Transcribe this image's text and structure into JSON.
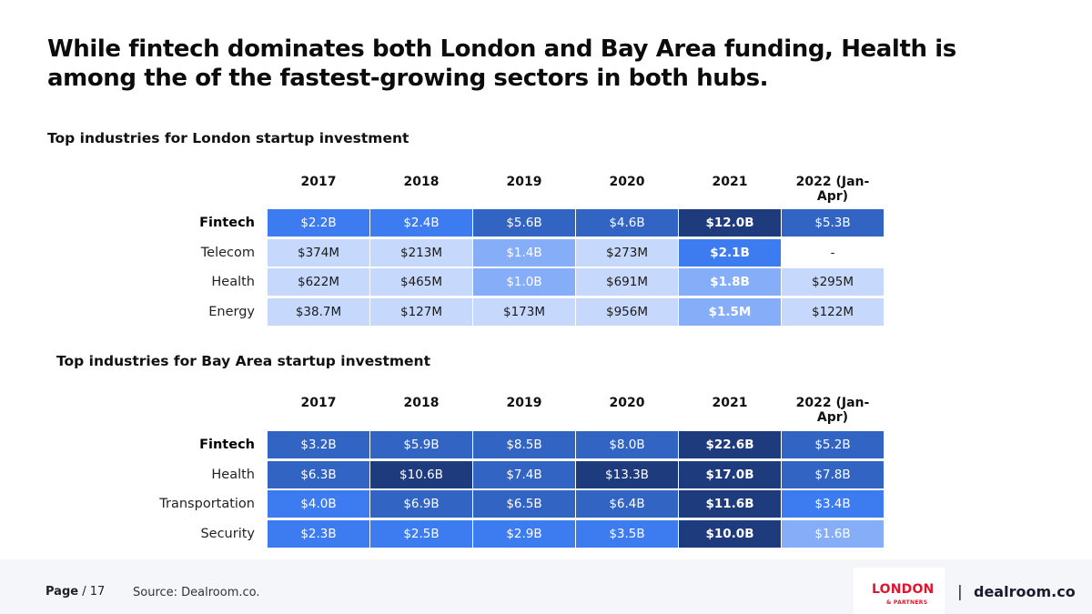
{
  "title": "While fintech dominates both London and Bay Area funding, Health is among the of the fastest-growing sectors in both hubs.",
  "colors": {
    "very_dark": "#1e3b7d",
    "dark": "#3264c4",
    "medium": "#3c7cf0",
    "light": "#86aef8",
    "very_light": "#c6d9fc",
    "empty": "#ffffff"
  },
  "london": {
    "section_title": "Top industries for London startup investment",
    "years": [
      "2017",
      "2018",
      "2019",
      "2020",
      "2021",
      "2022 (Jan-Apr)"
    ],
    "rows": [
      {
        "label": "Fintech",
        "bold_label": true,
        "cells": [
          {
            "v": "$2.2B",
            "c": "medium",
            "b": false
          },
          {
            "v": "$2.4B",
            "c": "medium",
            "b": false
          },
          {
            "v": "$5.6B",
            "c": "dark",
            "b": false
          },
          {
            "v": "$4.6B",
            "c": "dark",
            "b": false
          },
          {
            "v": "$12.0B",
            "c": "very_dark",
            "b": true
          },
          {
            "v": "$5.3B",
            "c": "dark",
            "b": false
          }
        ]
      },
      {
        "label": "Telecom",
        "bold_label": false,
        "cells": [
          {
            "v": "$374M",
            "c": "very_light",
            "b": false
          },
          {
            "v": "$213M",
            "c": "very_light",
            "b": false
          },
          {
            "v": "$1.4B",
            "c": "light",
            "b": false
          },
          {
            "v": "$273M",
            "c": "very_light",
            "b": false
          },
          {
            "v": "$2.1B",
            "c": "medium",
            "b": true
          },
          {
            "v": "-",
            "c": "empty",
            "b": false
          }
        ]
      },
      {
        "label": "Health",
        "bold_label": false,
        "cells": [
          {
            "v": "$622M",
            "c": "very_light",
            "b": false
          },
          {
            "v": "$465M",
            "c": "very_light",
            "b": false
          },
          {
            "v": "$1.0B",
            "c": "light",
            "b": false
          },
          {
            "v": "$691M",
            "c": "very_light",
            "b": false
          },
          {
            "v": "$1.8B",
            "c": "light",
            "b": true
          },
          {
            "v": "$295M",
            "c": "very_light",
            "b": false
          }
        ]
      },
      {
        "label": "Energy",
        "bold_label": false,
        "cells": [
          {
            "v": "$38.7M",
            "c": "very_light",
            "b": false
          },
          {
            "v": "$127M",
            "c": "very_light",
            "b": false
          },
          {
            "v": "$173M",
            "c": "very_light",
            "b": false
          },
          {
            "v": "$956M",
            "c": "very_light",
            "b": false
          },
          {
            "v": "$1.5M",
            "c": "light",
            "b": true
          },
          {
            "v": "$122M",
            "c": "very_light",
            "b": false
          }
        ]
      }
    ]
  },
  "bay_area": {
    "section_title": "Top industries for Bay Area startup investment",
    "years": [
      "2017",
      "2018",
      "2019",
      "2020",
      "2021",
      "2022 (Jan-Apr)"
    ],
    "rows": [
      {
        "label": "Fintech",
        "bold_label": true,
        "cells": [
          {
            "v": "$3.2B",
            "c": "dark",
            "b": false
          },
          {
            "v": "$5.9B",
            "c": "dark",
            "b": false
          },
          {
            "v": "$8.5B",
            "c": "dark",
            "b": false
          },
          {
            "v": "$8.0B",
            "c": "dark",
            "b": false
          },
          {
            "v": "$22.6B",
            "c": "very_dark",
            "b": true
          },
          {
            "v": "$5.2B",
            "c": "dark",
            "b": false
          }
        ]
      },
      {
        "label": "Health",
        "bold_label": false,
        "cells": [
          {
            "v": "$6.3B",
            "c": "dark",
            "b": false
          },
          {
            "v": "$10.6B",
            "c": "very_dark",
            "b": false
          },
          {
            "v": "$7.4B",
            "c": "dark",
            "b": false
          },
          {
            "v": "$13.3B",
            "c": "very_dark",
            "b": false
          },
          {
            "v": "$17.0B",
            "c": "very_dark",
            "b": true
          },
          {
            "v": "$7.8B",
            "c": "dark",
            "b": false
          }
        ]
      },
      {
        "label": "Transportation",
        "bold_label": false,
        "cells": [
          {
            "v": "$4.0B",
            "c": "medium",
            "b": false
          },
          {
            "v": "$6.9B",
            "c": "dark",
            "b": false
          },
          {
            "v": "$6.5B",
            "c": "dark",
            "b": false
          },
          {
            "v": "$6.4B",
            "c": "dark",
            "b": false
          },
          {
            "v": "$11.6B",
            "c": "very_dark",
            "b": true
          },
          {
            "v": "$3.4B",
            "c": "medium",
            "b": false
          }
        ]
      },
      {
        "label": "Security",
        "bold_label": false,
        "cells": [
          {
            "v": "$2.3B",
            "c": "medium",
            "b": false
          },
          {
            "v": "$2.5B",
            "c": "medium",
            "b": false
          },
          {
            "v": "$2.9B",
            "c": "medium",
            "b": false
          },
          {
            "v": "$3.5B",
            "c": "medium",
            "b": false
          },
          {
            "v": "$10.0B",
            "c": "very_dark",
            "b": true
          },
          {
            "v": "$1.6B",
            "c": "light",
            "b": false
          }
        ]
      }
    ]
  },
  "footer": {
    "page_label": "Page",
    "page_number": "/ 17",
    "source": "Source: Dealroom.co.",
    "logo_london": "LONDON",
    "logo_partners": "& PARTNERS",
    "separator": "|",
    "logo_dealroom": "dealroom.co"
  }
}
